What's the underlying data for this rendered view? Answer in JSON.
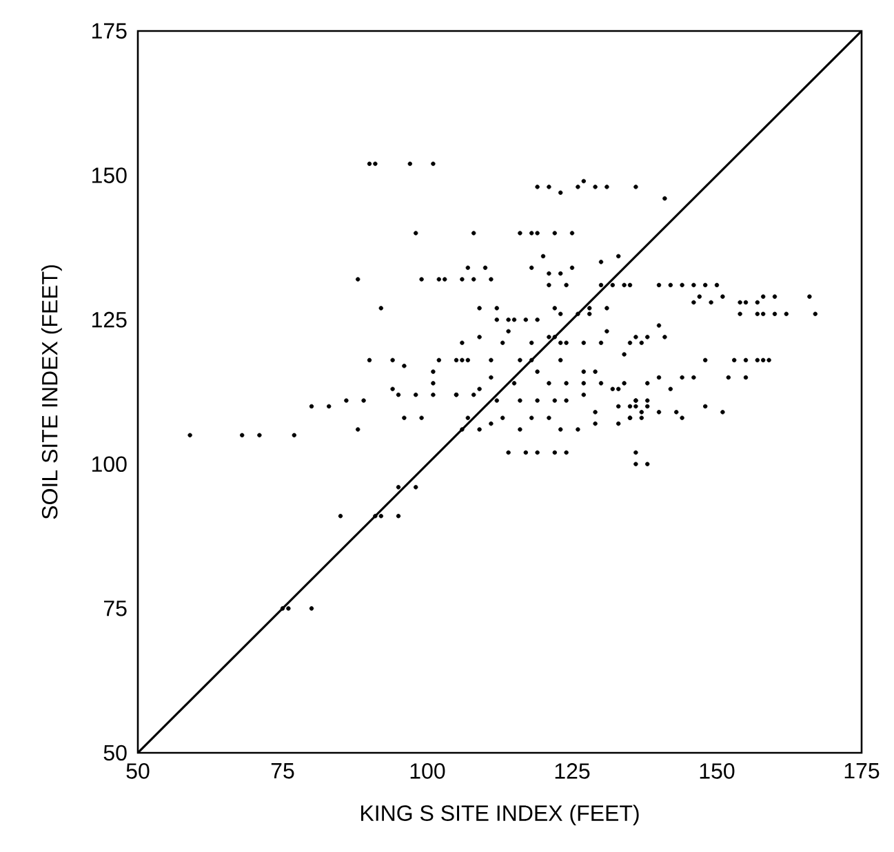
{
  "chart_data": {
    "type": "scatter",
    "xlabel": "KING S SITE INDEX (FEET)",
    "ylabel": "SOIL SITE INDEX (FEET)",
    "xlim": [
      50,
      175
    ],
    "ylim": [
      50,
      175
    ],
    "xticks": [
      50,
      75,
      100,
      125,
      150,
      175
    ],
    "yticks": [
      50,
      75,
      100,
      125,
      150,
      175
    ],
    "series": [
      {
        "marker": "circle",
        "color": "#000000",
        "x": [
          59,
          68,
          71,
          77,
          75,
          76,
          80,
          85,
          91,
          92,
          95,
          95,
          98,
          90,
          91,
          97,
          101,
          98,
          88,
          99,
          102,
          103,
          92,
          90,
          94,
          96,
          102,
          106,
          107,
          101,
          101,
          101,
          86,
          89,
          80,
          83,
          94,
          95,
          98,
          105,
          108,
          96,
          99,
          88,
          106,
          107,
          107,
          106,
          108,
          106,
          109,
          108,
          119,
          121,
          123,
          126,
          127,
          129,
          131,
          136,
          116,
          118,
          119,
          122,
          125,
          120,
          118,
          121,
          123,
          125,
          121,
          124,
          110,
          111,
          130,
          133,
          130,
          132,
          134,
          135,
          112,
          112,
          114,
          115,
          117,
          119,
          122,
          123,
          126,
          128,
          128,
          131,
          109,
          113,
          114,
          118,
          121,
          122,
          123,
          124,
          127,
          130,
          131,
          135,
          137,
          105,
          111,
          116,
          118,
          123,
          134,
          119,
          127,
          129,
          111,
          115,
          121,
          124,
          127,
          130,
          132,
          134,
          138,
          105,
          109,
          112,
          116,
          119,
          122,
          124,
          127,
          133,
          136,
          138,
          109,
          111,
          113,
          116,
          118,
          121,
          123,
          126,
          129,
          133,
          135,
          137,
          129,
          133,
          136,
          114,
          117,
          119,
          122,
          124,
          136,
          136,
          138,
          141,
          140,
          142,
          144,
          146,
          148,
          150,
          146,
          147,
          149,
          151,
          154,
          155,
          157,
          158,
          160,
          166,
          154,
          157,
          158,
          160,
          162,
          167,
          140,
          136,
          138,
          141,
          148,
          153,
          155,
          157,
          158,
          159,
          140,
          144,
          146,
          152,
          155,
          142,
          136,
          135,
          138,
          137,
          140,
          143,
          144,
          148,
          151,
          135
        ],
        "values": [
          105,
          105,
          105,
          105,
          75,
          75,
          75,
          91,
          91,
          91,
          91,
          96,
          96,
          152,
          152,
          152,
          152,
          140,
          132,
          132,
          132,
          132,
          127,
          118,
          118,
          117,
          118,
          118,
          118,
          116,
          114,
          112,
          111,
          111,
          110,
          110,
          113,
          112,
          112,
          112,
          112,
          108,
          108,
          106,
          106,
          108,
          134,
          132,
          132,
          121,
          127,
          140,
          148,
          148,
          147,
          148,
          149,
          148,
          148,
          148,
          140,
          140,
          140,
          140,
          140,
          136,
          134,
          133,
          133,
          134,
          131,
          131,
          134,
          132,
          135,
          136,
          131,
          131,
          131,
          131,
          127,
          125,
          125,
          125,
          125,
          125,
          127,
          126,
          126,
          127,
          126,
          127,
          122,
          121,
          123,
          121,
          122,
          122,
          121,
          121,
          121,
          121,
          123,
          121,
          121,
          118,
          118,
          118,
          118,
          118,
          119,
          116,
          116,
          116,
          115,
          114,
          114,
          114,
          114,
          114,
          113,
          114,
          114,
          112,
          113,
          111,
          111,
          111,
          111,
          111,
          112,
          113,
          111,
          111,
          106,
          107,
          108,
          106,
          108,
          108,
          106,
          106,
          107,
          107,
          108,
          108,
          109,
          110,
          110,
          102,
          102,
          102,
          102,
          102,
          102,
          100,
          100,
          146,
          131,
          131,
          131,
          131,
          131,
          131,
          128,
          129,
          128,
          129,
          128,
          128,
          128,
          129,
          129,
          129,
          126,
          126,
          126,
          126,
          126,
          126,
          124,
          122,
          122,
          122,
          118,
          118,
          118,
          118,
          118,
          118,
          115,
          115,
          115,
          115,
          115,
          113,
          111,
          110,
          110,
          109,
          109,
          109,
          108,
          110,
          109,
          108
        ]
      },
      {
        "type": "line",
        "marker": "none",
        "color": "#000000",
        "x": [
          50,
          175
        ],
        "values": [
          50,
          175
        ]
      }
    ]
  }
}
